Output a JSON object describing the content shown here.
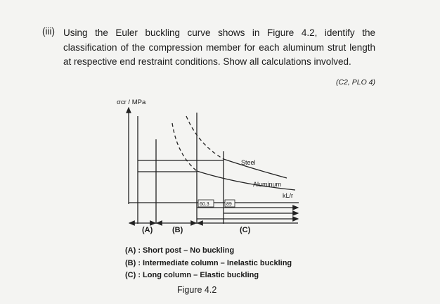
{
  "question": {
    "number": "(iii)",
    "text": "Using the Euler buckling curve shows in Figure 4.2, identify the classification of the compression member for each aluminum strut length at respective end restraint conditions. Show all calculations involved.",
    "marks": "(C2, PLO 4)"
  },
  "figure": {
    "y_axis_label": "σcr / MPa",
    "x_axis_label": "kL/r",
    "curves": [
      "Steel",
      "Aluminum"
    ],
    "limits": [
      "60.3",
      "89"
    ],
    "regions": [
      "(A)",
      "(B)",
      "(C)"
    ],
    "legend": [
      "(A) : Short post – No buckling",
      "(B) : Intermediate column – Inelastic buckling",
      "(C) : Long column – Elastic buckling"
    ],
    "caption": "Figure 4.2"
  }
}
